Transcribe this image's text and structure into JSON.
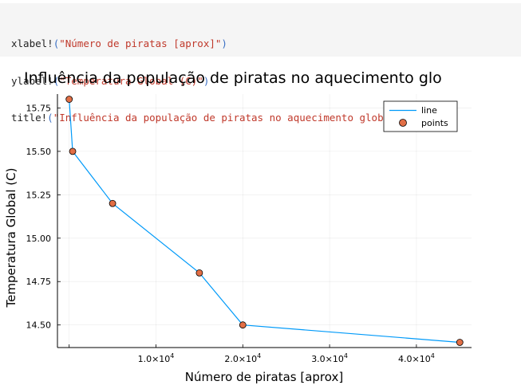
{
  "code": {
    "lines": [
      {
        "fn": "xlabel!",
        "open": "(",
        "arg": "\"Número de piratas [aprox]\"",
        "close": ")"
      },
      {
        "fn": "ylabel!",
        "open": "(",
        "arg": "\"Temperatura Global (C)\"",
        "close": ")"
      },
      {
        "fn": "title!",
        "open": "(",
        "arg": "\"Influência da população de piratas no aquecimento global\"",
        "close": ")"
      }
    ]
  },
  "chart_data": {
    "type": "line",
    "title": "Influência da população de piratas no aquecimento glo",
    "xlabel": "Número de piratas [aprox]",
    "ylabel": "Temperatura Global (C)",
    "x": [
      1,
      400,
      5000,
      15000,
      20000,
      45000
    ],
    "series": [
      {
        "name": "line",
        "style": "line",
        "color": "#009af9",
        "values": [
          15.8,
          15.5,
          15.2,
          14.8,
          14.5,
          14.4
        ]
      },
      {
        "name": "points",
        "style": "scatter",
        "color": "#e26f46",
        "values": [
          15.8,
          15.5,
          15.2,
          14.8,
          14.5,
          14.4
        ]
      }
    ],
    "xlim": [
      -1350,
      46350
    ],
    "ylim": [
      14.37,
      15.83
    ],
    "x_ticks": [
      {
        "value": 10000,
        "base": "1.0×10",
        "exp": "4"
      },
      {
        "value": 20000,
        "base": "2.0×10",
        "exp": "4"
      },
      {
        "value": 30000,
        "base": "3.0×10",
        "exp": "4"
      },
      {
        "value": 40000,
        "base": "4.0×10",
        "exp": "4"
      }
    ],
    "y_ticks": [
      {
        "value": 14.5,
        "label": "14.50"
      },
      {
        "value": 14.75,
        "label": "14.75"
      },
      {
        "value": 15.0,
        "label": "15.00"
      },
      {
        "value": 15.25,
        "label": "15.25"
      },
      {
        "value": 15.5,
        "label": "15.50"
      },
      {
        "value": 15.75,
        "label": "15.75"
      }
    ],
    "grid": true,
    "legend_position": "top-right"
  }
}
